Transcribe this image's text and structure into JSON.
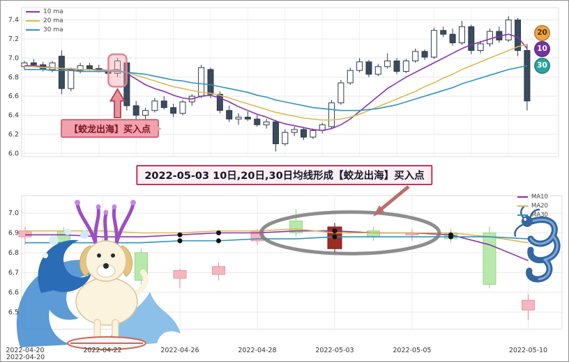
{
  "figure": {
    "bottom_left_extra_label": "2022-04-20"
  },
  "annotations": {
    "banner_text": "2022-05-03 10日,20日,30日均线形成【蛟龙出海】买入点",
    "buy_point_label": "【蛟龙出海】买入点"
  },
  "badges": [
    {
      "label": "20",
      "color": "#f2a53c",
      "text_color": "#45320a"
    },
    {
      "label": "10",
      "color": "#7434a8",
      "text_color": "#ffffff"
    },
    {
      "label": "30",
      "color": "#2aa5a0",
      "text_color": "#ffffff"
    }
  ],
  "decorations": {
    "left": "surfing-dog-with-coral-antlers",
    "right": "blue-dragon"
  },
  "chart_data": [
    {
      "name": "daily-kline-overview",
      "type": "candlestick",
      "ylim": [
        5.98,
        7.5
      ],
      "yticks": [
        6.0,
        6.2,
        6.4,
        6.6,
        6.8,
        7.0,
        7.2,
        7.4
      ],
      "grid": true,
      "legend_position": "top-left",
      "up_style": {
        "fill": "#ffffff",
        "stroke": "#2c3a4a"
      },
      "down_style": {
        "fill": "#394b5f",
        "stroke": "#2c3a4a"
      },
      "legend": [
        {
          "label": "10 ma",
          "color": "#8b2fae"
        },
        {
          "label": "20 ma",
          "color": "#d9bb4f"
        },
        {
          "label": "30 ma",
          "color": "#2d93c0"
        }
      ],
      "candles": [
        [
          6.91,
          6.97,
          6.88,
          6.95
        ],
        [
          6.95,
          6.99,
          6.91,
          6.93
        ],
        [
          6.93,
          6.96,
          6.86,
          6.88
        ],
        [
          6.88,
          6.97,
          6.85,
          6.95
        ],
        [
          7.02,
          7.08,
          6.62,
          6.68
        ],
        [
          6.68,
          6.9,
          6.65,
          6.87
        ],
        [
          6.87,
          6.95,
          6.84,
          6.92
        ],
        [
          6.92,
          6.95,
          6.87,
          6.89
        ],
        [
          6.89,
          6.93,
          6.85,
          6.86
        ],
        [
          6.86,
          6.9,
          6.82,
          6.84
        ],
        [
          6.84,
          7.0,
          6.8,
          6.97
        ],
        [
          6.95,
          6.97,
          6.45,
          6.5
        ],
        [
          6.5,
          6.55,
          6.35,
          6.4
        ],
        [
          6.4,
          6.48,
          6.36,
          6.45
        ],
        [
          6.45,
          6.58,
          6.43,
          6.55
        ],
        [
          6.55,
          6.6,
          6.46,
          6.48
        ],
        [
          6.48,
          6.52,
          6.38,
          6.42
        ],
        [
          6.42,
          6.56,
          6.4,
          6.54
        ],
        [
          6.54,
          6.62,
          6.5,
          6.6
        ],
        [
          6.6,
          6.93,
          6.58,
          6.9
        ],
        [
          6.88,
          6.9,
          6.58,
          6.62
        ],
        [
          6.62,
          6.65,
          6.42,
          6.45
        ],
        [
          6.45,
          6.5,
          6.33,
          6.36
        ],
        [
          6.36,
          6.42,
          6.3,
          6.38
        ],
        [
          6.38,
          6.44,
          6.34,
          6.36
        ],
        [
          6.36,
          6.4,
          6.28,
          6.3
        ],
        [
          6.3,
          6.36,
          6.26,
          6.33
        ],
        [
          6.33,
          6.35,
          6.02,
          6.1
        ],
        [
          6.1,
          6.25,
          6.08,
          6.22
        ],
        [
          6.22,
          6.28,
          6.18,
          6.25
        ],
        [
          6.25,
          6.27,
          6.14,
          6.17
        ],
        [
          6.17,
          6.26,
          6.15,
          6.24
        ],
        [
          6.24,
          6.32,
          6.21,
          6.3
        ],
        [
          6.28,
          6.56,
          6.26,
          6.53
        ],
        [
          6.53,
          6.77,
          6.51,
          6.74
        ],
        [
          6.74,
          6.9,
          6.72,
          6.87
        ],
        [
          6.87,
          7.0,
          6.85,
          6.96
        ],
        [
          6.96,
          6.98,
          6.8,
          6.83
        ],
        [
          6.83,
          6.94,
          6.81,
          6.91
        ],
        [
          6.91,
          7.05,
          6.89,
          6.97
        ],
        [
          6.97,
          7.0,
          6.83,
          6.86
        ],
        [
          6.86,
          6.99,
          6.84,
          6.97
        ],
        [
          6.97,
          7.1,
          6.95,
          7.07
        ],
        [
          7.07,
          7.09,
          6.98,
          7.01
        ],
        [
          7.01,
          7.32,
          6.99,
          7.29
        ],
        [
          7.29,
          7.33,
          7.22,
          7.25
        ],
        [
          7.25,
          7.31,
          7.13,
          7.16
        ],
        [
          7.16,
          7.39,
          7.14,
          7.33
        ],
        [
          7.33,
          7.35,
          7.04,
          7.08
        ],
        [
          7.08,
          7.18,
          7.05,
          7.15
        ],
        [
          7.15,
          7.31,
          7.12,
          7.28
        ],
        [
          7.28,
          7.33,
          7.16,
          7.19
        ],
        [
          7.19,
          7.44,
          7.17,
          7.4
        ],
        [
          7.4,
          7.42,
          7.02,
          7.08
        ],
        [
          7.08,
          7.15,
          6.45,
          6.55
        ]
      ],
      "series": [
        {
          "name": "10 ma",
          "color": "#8b2fae",
          "values": [
            6.92,
            6.92,
            6.91,
            6.9,
            6.89,
            6.88,
            6.88,
            6.88,
            6.88,
            6.87,
            6.88,
            6.84,
            6.78,
            6.72,
            6.68,
            6.65,
            6.61,
            6.58,
            6.57,
            6.6,
            6.61,
            6.58,
            6.54,
            6.49,
            6.45,
            6.41,
            6.38,
            6.34,
            6.31,
            6.29,
            6.27,
            6.25,
            6.24,
            6.26,
            6.3,
            6.36,
            6.44,
            6.52,
            6.6,
            6.68,
            6.74,
            6.8,
            6.85,
            6.9,
            6.95,
            7.0,
            7.05,
            7.1,
            7.14,
            7.17,
            7.2,
            7.23,
            7.25,
            7.22,
            7.1
          ]
        },
        {
          "name": "20 ma",
          "color": "#d9bb4f",
          "values": [
            6.91,
            6.91,
            6.9,
            6.9,
            6.89,
            6.89,
            6.88,
            6.88,
            6.87,
            6.87,
            6.87,
            6.85,
            6.82,
            6.79,
            6.76,
            6.73,
            6.7,
            6.68,
            6.66,
            6.64,
            6.63,
            6.61,
            6.58,
            6.55,
            6.52,
            6.49,
            6.46,
            6.43,
            6.41,
            6.39,
            6.37,
            6.36,
            6.35,
            6.35,
            6.36,
            6.38,
            6.41,
            6.45,
            6.49,
            6.53,
            6.57,
            6.61,
            6.65,
            6.7,
            6.74,
            6.79,
            6.83,
            6.88,
            6.92,
            6.96,
            7.0,
            7.04,
            7.08,
            7.12,
            7.14
          ]
        },
        {
          "name": "30 ma",
          "color": "#2d93c0",
          "values": [
            6.88,
            6.88,
            6.88,
            6.87,
            6.87,
            6.87,
            6.86,
            6.86,
            6.86,
            6.86,
            6.86,
            6.85,
            6.84,
            6.83,
            6.81,
            6.79,
            6.77,
            6.76,
            6.74,
            6.73,
            6.72,
            6.7,
            6.68,
            6.66,
            6.64,
            6.61,
            6.59,
            6.56,
            6.54,
            6.52,
            6.5,
            6.48,
            6.47,
            6.46,
            6.45,
            6.45,
            6.45,
            6.46,
            6.47,
            6.49,
            6.51,
            6.54,
            6.57,
            6.6,
            6.63,
            6.66,
            6.69,
            6.73,
            6.76,
            6.79,
            6.82,
            6.85,
            6.88,
            6.9,
            6.92
          ]
        }
      ],
      "highlight": {
        "candle_index": 10,
        "value_top": 7.04,
        "value_bottom": 6.7,
        "stroke": "#e8808f",
        "fill": "rgba(244,166,176,0.4)"
      }
    },
    {
      "name": "jiaolong-chuhai-zoom",
      "type": "candlestick",
      "ylim": [
        6.42,
        7.06
      ],
      "yticks": [
        6.5,
        6.6,
        6.7,
        6.8,
        6.9,
        7.0
      ],
      "grid": true,
      "legend_position": "top-right",
      "dates": [
        "2022-04-20",
        "2022-04-21",
        "2022-04-22",
        "2022-04-25",
        "2022-04-26",
        "2022-04-27",
        "2022-04-28",
        "2022-04-29",
        "2022-05-03",
        "2022-05-04",
        "2022-05-05",
        "2022-05-06",
        "2022-05-09",
        "2022-05-10"
      ],
      "tick_indices": [
        0,
        2,
        4,
        6,
        8,
        10,
        13
      ],
      "tick_labels": [
        "2022-04-20",
        "2022-04-22",
        "2022-04-26",
        "2022-04-28",
        "2022-05-03",
        "2022-05-05",
        "2022-05-10"
      ],
      "up_style": {
        "fill": "#f6b6c0",
        "stroke": "#e795a3"
      },
      "down_style": {
        "fill": "#b7eaaa",
        "stroke": "#97d48e"
      },
      "special_candle": {
        "index": 8,
        "fill": "#9e2b25",
        "stroke": "#7a1f1a"
      },
      "legend": [
        {
          "label": "MA10",
          "color": "#8b2fae"
        },
        {
          "label": "MA20",
          "color": "#d9bb4f"
        },
        {
          "label": "MA30",
          "color": "#2d93c0"
        }
      ],
      "candles": [
        [
          6.88,
          6.93,
          6.84,
          6.91
        ],
        [
          6.91,
          6.93,
          6.82,
          6.85
        ],
        [
          6.85,
          6.88,
          6.78,
          6.8
        ],
        [
          6.8,
          6.82,
          6.64,
          6.66
        ],
        [
          6.67,
          6.72,
          6.62,
          6.71
        ],
        [
          6.69,
          6.75,
          6.66,
          6.73
        ],
        [
          6.86,
          6.92,
          6.84,
          6.91
        ],
        [
          6.96,
          7.02,
          6.88,
          6.9
        ],
        [
          6.82,
          6.95,
          6.8,
          6.93
        ],
        [
          6.91,
          6.93,
          6.86,
          6.88
        ],
        [
          6.89,
          6.92,
          6.86,
          6.9
        ],
        [
          6.9,
          6.92,
          6.85,
          6.87
        ],
        [
          6.9,
          6.93,
          6.62,
          6.64
        ],
        [
          6.51,
          6.59,
          6.46,
          6.56
        ]
      ],
      "series": [
        {
          "name": "MA10",
          "color": "#8b2fae",
          "values": [
            6.89,
            6.89,
            6.88,
            6.88,
            6.89,
            6.9,
            6.9,
            6.91,
            6.91,
            6.9,
            6.9,
            6.89,
            6.84,
            6.76
          ]
        },
        {
          "name": "MA20",
          "color": "#d9bb4f",
          "values": [
            6.91,
            6.91,
            6.91,
            6.9,
            6.9,
            6.91,
            6.91,
            6.92,
            6.9,
            6.9,
            6.9,
            6.9,
            6.88,
            6.85
          ]
        },
        {
          "name": "MA30",
          "color": "#2d93c0",
          "values": [
            6.85,
            6.85,
            6.85,
            6.85,
            6.86,
            6.86,
            6.87,
            6.87,
            6.88,
            6.88,
            6.88,
            6.88,
            6.88,
            6.87
          ]
        }
      ],
      "marker_days": [
        4,
        5,
        8,
        11
      ],
      "ellipse": {
        "center_day": 8.4,
        "center_value": 6.9,
        "radius_days": 2.3,
        "radius_value": 0.105,
        "stroke": "#7a7a7a"
      }
    }
  ]
}
